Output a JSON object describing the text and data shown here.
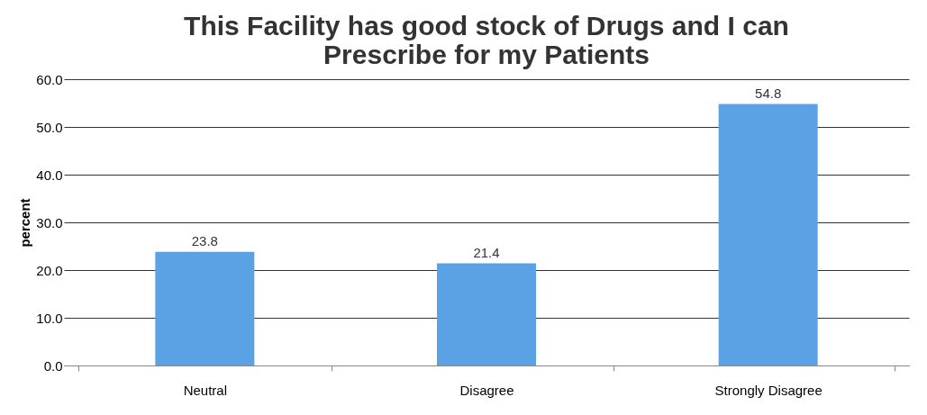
{
  "chart_data": {
    "type": "bar",
    "title": [
      "This Facility has good stock of Drugs and I can",
      "Prescribe for my Patients"
    ],
    "ylabel": "percent",
    "categories": [
      "Neutral",
      "Disagree",
      "Strongly Disagree"
    ],
    "values": [
      23.8,
      21.4,
      54.8
    ],
    "color": "#5aa2e3",
    "ylim": [
      0,
      60
    ],
    "yticks": [
      {
        "value": 0,
        "label": "0.0"
      },
      {
        "value": 10,
        "label": "10.0"
      },
      {
        "value": 20,
        "label": "20.0"
      },
      {
        "value": 30,
        "label": "30.0"
      },
      {
        "value": 40,
        "label": "40.0"
      },
      {
        "value": 50,
        "label": "50.0"
      },
      {
        "value": 60,
        "label": "60.0"
      }
    ],
    "grid": "y",
    "data_labels": true
  }
}
